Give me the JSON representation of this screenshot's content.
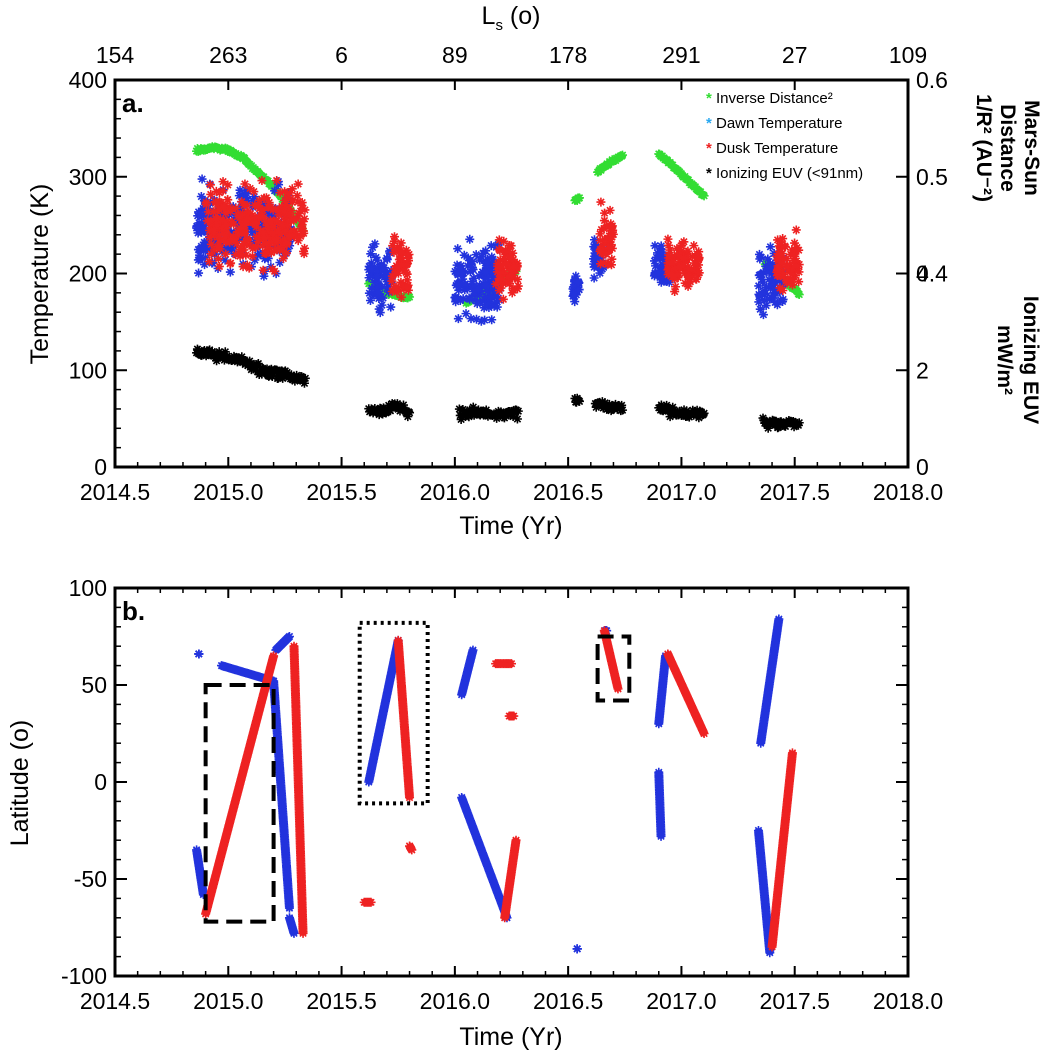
{
  "chart_data": [
    {
      "panel_label": "a.",
      "type": "scatter",
      "xlabel": "Time (Yr)",
      "ylabel": "Temperature (K)",
      "xlim": [
        2014.5,
        2018.0
      ],
      "ylim": [
        0,
        400
      ],
      "x_ticks": [
        "2014.5",
        "2015.0",
        "2015.5",
        "2016.0",
        "2016.5",
        "2017.0",
        "2017.5",
        "2018.0"
      ],
      "y_ticks": [
        "0",
        "100",
        "200",
        "300",
        "400"
      ],
      "top_axis": {
        "label_main": "L",
        "label_sub": "s",
        "label_rest": " (o)",
        "ticks": [
          "154",
          "263",
          "6",
          "89",
          "178",
          "291",
          "27",
          "109"
        ]
      },
      "right_axis_upper": {
        "title_lines": [
          "Mars-Sun",
          "Distance",
          "1/R² (AU⁻²)"
        ],
        "ticks": [
          "0.6",
          "0.5",
          "0.4"
        ],
        "range": [
          0.2,
          0.6
        ]
      },
      "right_axis_lower": {
        "title_lines": [
          "Ionizing EUV",
          "mW/m²"
        ],
        "ticks": [
          "4",
          "2",
          "0"
        ],
        "range": [
          0,
          8
        ]
      },
      "legend": [
        {
          "symbol": "*",
          "label": "Inverse Distance²",
          "color": "#33dd33"
        },
        {
          "symbol": "*",
          "label": "Dawn Temperature",
          "color": "#29a8f0"
        },
        {
          "symbol": "*",
          "label": "Dusk Temperature",
          "color": "#ee2222"
        },
        {
          "symbol": "*",
          "label": "Ionizing EUV (<91nm)",
          "color": "#000000"
        }
      ],
      "series": [
        {
          "name": "Inverse Distance²",
          "color": "#33dd33",
          "axis": "right_upper",
          "segments": [
            {
              "t0": 2014.86,
              "t1": 2015.33,
              "v": [
                0.527,
                0.53,
                0.528,
                0.52,
                0.505,
                0.49,
                0.47,
                0.445
              ]
            },
            {
              "t0": 2015.62,
              "t1": 2015.8,
              "v": [
                0.39,
                0.382,
                0.377,
                0.375
              ]
            },
            {
              "t0": 2016.05,
              "t1": 2016.27,
              "v": [
                0.37,
                0.38,
                0.39,
                0.403
              ]
            },
            {
              "t0": 2016.53,
              "t1": 2016.55,
              "v": [
                0.475,
                0.478
              ]
            },
            {
              "t0": 2016.63,
              "t1": 2016.74,
              "v": [
                0.505,
                0.515,
                0.522
              ]
            },
            {
              "t0": 2016.9,
              "t1": 2017.1,
              "v": [
                0.524,
                0.51,
                0.495,
                0.48
              ]
            },
            {
              "t0": 2017.37,
              "t1": 2017.52,
              "v": [
                0.41,
                0.395,
                0.38
              ]
            }
          ]
        },
        {
          "name": "Dawn Temperature",
          "color": "#2233dd",
          "axis": "left",
          "clusters": [
            {
              "t0": 2014.86,
              "t1": 2015.28,
              "mean": 245,
              "spread": 35
            },
            {
              "t0": 2015.62,
              "t1": 2015.72,
              "mean": 195,
              "spread": 30
            },
            {
              "t0": 2016.0,
              "t1": 2016.2,
              "mean": 190,
              "spread": 35
            },
            {
              "t0": 2016.52,
              "t1": 2016.55,
              "mean": 185,
              "spread": 10
            },
            {
              "t0": 2016.61,
              "t1": 2016.66,
              "mean": 215,
              "spread": 15
            },
            {
              "t0": 2016.88,
              "t1": 2016.95,
              "mean": 205,
              "spread": 20
            },
            {
              "t0": 2017.34,
              "t1": 2017.45,
              "mean": 190,
              "spread": 28
            }
          ]
        },
        {
          "name": "Dusk Temperature",
          "color": "#ee2222",
          "axis": "left",
          "clusters": [
            {
              "t0": 2014.9,
              "t1": 2015.34,
              "mean": 250,
              "spread": 35
            },
            {
              "t0": 2015.72,
              "t1": 2015.8,
              "mean": 205,
              "spread": 25
            },
            {
              "t0": 2016.18,
              "t1": 2016.28,
              "mean": 205,
              "spread": 22
            },
            {
              "t0": 2016.64,
              "t1": 2016.7,
              "mean": 235,
              "spread": 25
            },
            {
              "t0": 2016.94,
              "t1": 2017.08,
              "mean": 210,
              "spread": 20
            },
            {
              "t0": 2017.42,
              "t1": 2017.52,
              "mean": 210,
              "spread": 22
            }
          ]
        },
        {
          "name": "Ionizing EUV (<91nm)",
          "color": "#000000",
          "axis": "right_lower",
          "segments": [
            {
              "t0": 2014.86,
              "t1": 2015.34,
              "v": [
                2.4,
                2.3,
                2.2,
                2.0,
                1.9,
                1.8
              ]
            },
            {
              "t0": 2015.62,
              "t1": 2015.8,
              "v": [
                1.2,
                1.15,
                1.25,
                1.1
              ]
            },
            {
              "t0": 2016.02,
              "t1": 2016.28,
              "v": [
                1.1,
                1.15,
                1.1,
                1.1
              ]
            },
            {
              "t0": 2016.53,
              "t1": 2016.55,
              "v": [
                1.35,
                1.35
              ]
            },
            {
              "t0": 2016.62,
              "t1": 2016.74,
              "v": [
                1.3,
                1.25,
                1.25
              ]
            },
            {
              "t0": 2016.9,
              "t1": 2017.1,
              "v": [
                1.2,
                1.15,
                1.1,
                1.1
              ]
            },
            {
              "t0": 2017.36,
              "t1": 2017.52,
              "v": [
                0.9,
                0.9,
                0.9
              ]
            }
          ]
        }
      ]
    },
    {
      "panel_label": "b.",
      "type": "scatter",
      "xlabel": "Time (Yr)",
      "ylabel": "Latitude (o)",
      "xlim": [
        2014.5,
        2018.0
      ],
      "ylim": [
        -100,
        100
      ],
      "x_ticks": [
        "2014.5",
        "2015.0",
        "2015.5",
        "2016.0",
        "2016.5",
        "2017.0",
        "2017.5",
        "2018.0"
      ],
      "y_ticks": [
        "-100",
        "-50",
        "0",
        "50",
        "100"
      ],
      "series": [
        {
          "name": "Dawn",
          "color": "#2233dd",
          "tracks": [
            {
              "t0": 2014.86,
              "t1": 2014.89,
              "lat0": -35,
              "lat1": -58
            },
            {
              "t0": 2014.87,
              "t1": 2014.87,
              "lat0": 66,
              "lat1": 66
            },
            {
              "t0": 2014.97,
              "t1": 2015.2,
              "lat0": 60,
              "lat1": 52
            },
            {
              "t0": 2015.2,
              "t1": 2015.27,
              "lat0": 52,
              "lat1": -65
            },
            {
              "t0": 2015.21,
              "t1": 2015.27,
              "lat0": 68,
              "lat1": 75
            },
            {
              "t0": 2015.27,
              "t1": 2015.29,
              "lat0": -70,
              "lat1": -78
            },
            {
              "t0": 2015.62,
              "t1": 2015.75,
              "lat0": 0,
              "lat1": 73
            },
            {
              "t0": 2016.03,
              "t1": 2016.08,
              "lat0": 45,
              "lat1": 68
            },
            {
              "t0": 2016.03,
              "t1": 2016.23,
              "lat0": -8,
              "lat1": -70
            },
            {
              "t0": 2016.54,
              "t1": 2016.54,
              "lat0": -86,
              "lat1": -86
            },
            {
              "t0": 2016.66,
              "t1": 2016.67,
              "lat0": 78,
              "lat1": 78
            },
            {
              "t0": 2016.9,
              "t1": 2016.93,
              "lat0": 30,
              "lat1": 65
            },
            {
              "t0": 2016.9,
              "t1": 2016.91,
              "lat0": 5,
              "lat1": -28
            },
            {
              "t0": 2017.34,
              "t1": 2017.39,
              "lat0": -25,
              "lat1": -88
            },
            {
              "t0": 2017.35,
              "t1": 2017.43,
              "lat0": 20,
              "lat1": 84
            }
          ]
        },
        {
          "name": "Dusk",
          "color": "#ee2222",
          "tracks": [
            {
              "t0": 2014.9,
              "t1": 2015.2,
              "lat0": -68,
              "lat1": 65
            },
            {
              "t0": 2015.29,
              "t1": 2015.33,
              "lat0": 70,
              "lat1": -78
            },
            {
              "t0": 2015.6,
              "t1": 2015.63,
              "lat0": -62,
              "lat1": -62
            },
            {
              "t0": 2015.75,
              "t1": 2015.8,
              "lat0": 73,
              "lat1": -8
            },
            {
              "t0": 2015.8,
              "t1": 2015.81,
              "lat0": -33,
              "lat1": -35
            },
            {
              "t0": 2016.18,
              "t1": 2016.25,
              "lat0": 61,
              "lat1": 61
            },
            {
              "t0": 2016.22,
              "t1": 2016.27,
              "lat0": -70,
              "lat1": -30
            },
            {
              "t0": 2016.24,
              "t1": 2016.26,
              "lat0": 34,
              "lat1": 34
            },
            {
              "t0": 2016.66,
              "t1": 2016.72,
              "lat0": 78,
              "lat1": 48
            },
            {
              "t0": 2016.94,
              "t1": 2017.1,
              "lat0": 66,
              "lat1": 25
            },
            {
              "t0": 2017.4,
              "t1": 2017.49,
              "lat0": -85,
              "lat1": 15
            }
          ]
        }
      ],
      "boxes": [
        {
          "style": "dashed",
          "t0": 2014.9,
          "t1": 2015.2,
          "lat0": -72,
          "lat1": 50
        },
        {
          "style": "dotted",
          "t0": 2015.58,
          "t1": 2015.88,
          "lat0": -11,
          "lat1": 82
        },
        {
          "style": "dashed",
          "t0": 2016.63,
          "t1": 2016.77,
          "lat0": 42,
          "lat1": 75
        }
      ]
    }
  ]
}
